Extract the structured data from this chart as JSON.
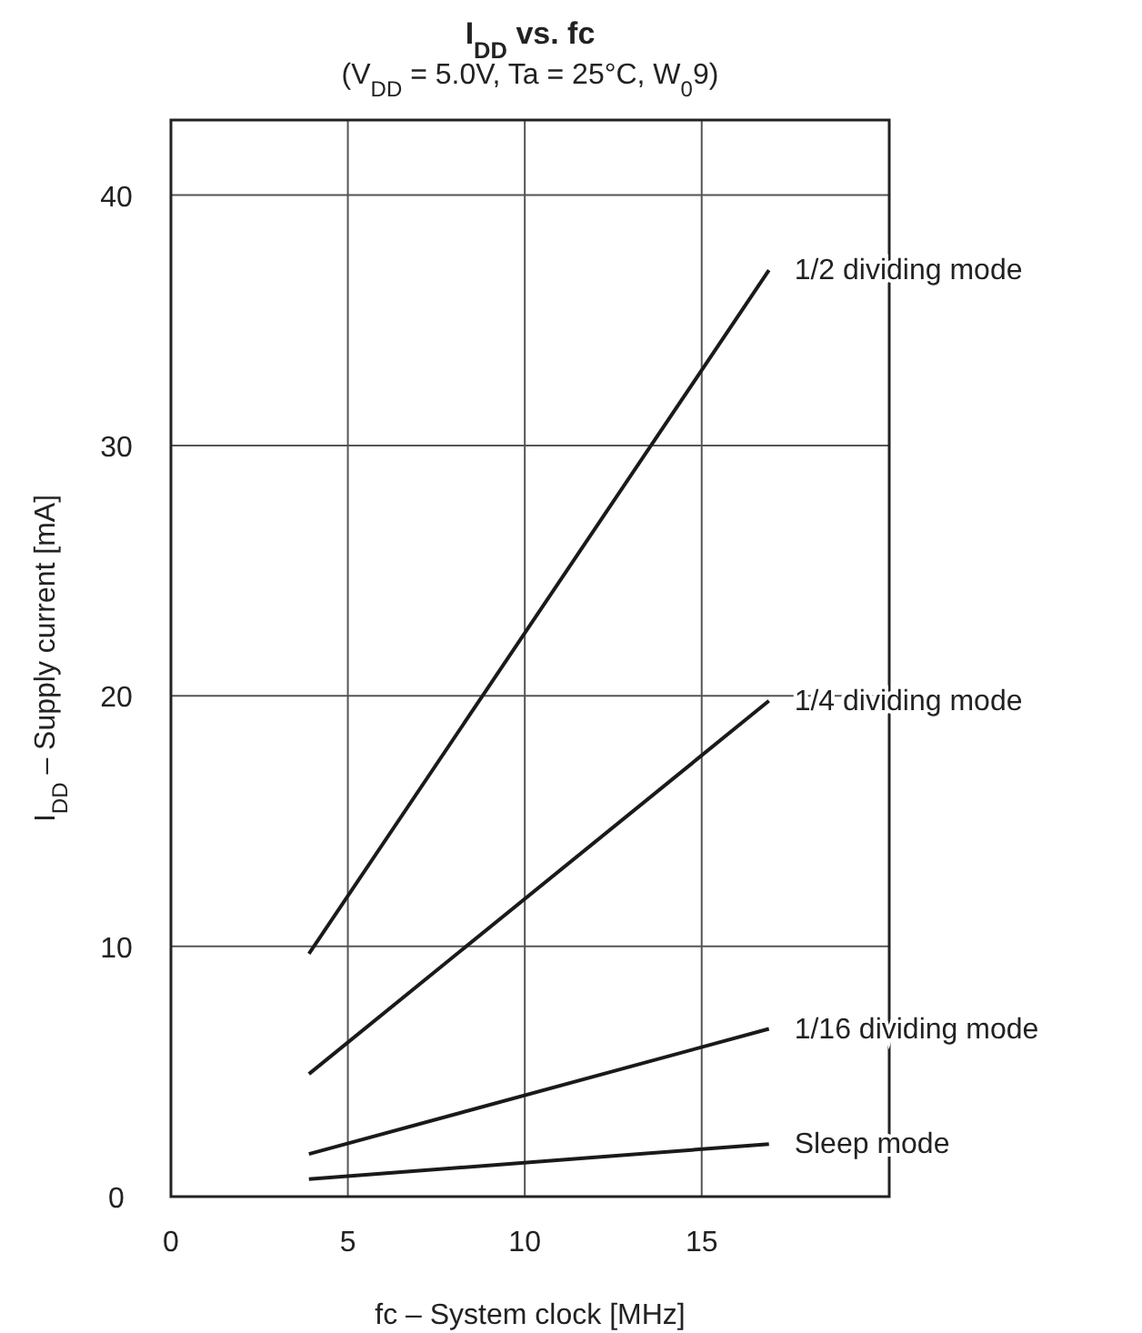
{
  "chart_data": {
    "type": "line",
    "title": "I$_{DD}$ vs. fc",
    "subtitle": "(V$_{DD}$ = 5.0V, Ta = 25°C, W$_{0}$9)",
    "xlabel": "fc – System clock [MHz]",
    "ylabel": "I$_{DD}$ – Supply current [mA]",
    "xlim": [
      0,
      20.3
    ],
    "ylim": [
      0,
      43
    ],
    "xticks": [
      0,
      5,
      10,
      15
    ],
    "yticks": [
      0,
      10,
      20,
      30,
      40
    ],
    "grid": true,
    "marker": "none",
    "line_style": "solid",
    "x": [
      3.9,
      16.9
    ],
    "series": [
      {
        "name": "1/2 dividing mode",
        "color": "#1a1a1a",
        "values": [
          9.7,
          37
        ]
      },
      {
        "name": "1/4 dividing mode",
        "color": "#1a1a1a",
        "values": [
          4.9,
          19.8
        ]
      },
      {
        "name": "1/16 dividing mode",
        "color": "#1a1a1a",
        "values": [
          1.7,
          6.7
        ]
      },
      {
        "name": "Sleep mode",
        "color": "#1a1a1a",
        "values": [
          0.7,
          2.1
        ]
      }
    ]
  }
}
